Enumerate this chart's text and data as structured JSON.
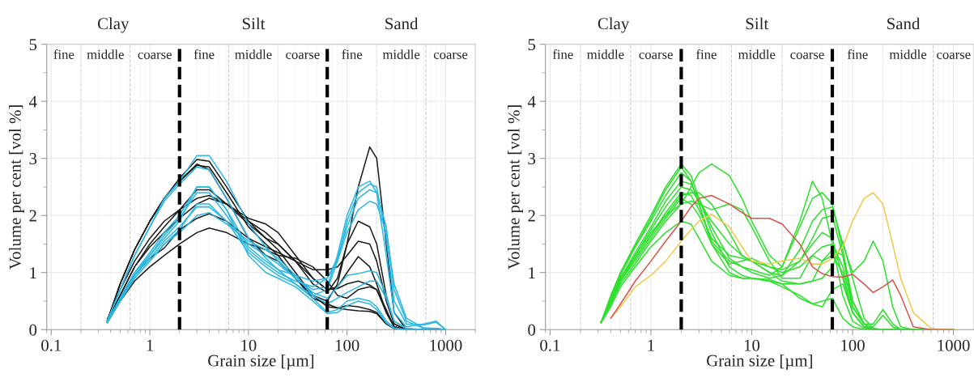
{
  "chart_data": [
    {
      "type": "line",
      "xlabel": "Grain size [µm]",
      "ylabel": "Volume per cent [vol %]",
      "log": "x",
      "grid": true,
      "legend": false,
      "marker": "none",
      "line_style": "solid",
      "xlim": [
        0.09,
        2000
      ],
      "xticks": [
        0.1,
        1,
        10,
        100,
        1000
      ],
      "ylim": [
        0,
        5
      ],
      "yticks": [
        0,
        1,
        2,
        3,
        4,
        5
      ],
      "x": [
        0.37,
        0.5,
        0.7,
        1,
        1.4,
        2,
        3,
        4,
        6,
        10,
        15,
        20,
        30,
        45,
        63,
        80,
        100,
        130,
        170,
        200,
        250,
        300,
        400,
        600,
        800,
        1000
      ],
      "series": [
        {
          "color": "#1a1a1a",
          "values": [
            0.15,
            0.8,
            1.4,
            1.9,
            2.3,
            2.65,
            2.98,
            2.95,
            2.5,
            1.9,
            1.6,
            1.4,
            1.0,
            0.6,
            0.4,
            0.38,
            0.42,
            0.4,
            0.35,
            0.3,
            0.1,
            0.02,
            0,
            0,
            0,
            0
          ]
        },
        {
          "color": "#1a1a1a",
          "values": [
            0.15,
            0.8,
            1.4,
            1.9,
            2.3,
            2.6,
            2.88,
            2.85,
            2.4,
            1.8,
            1.5,
            1.3,
            0.9,
            0.6,
            0.5,
            0.8,
            1.5,
            2.5,
            3.2,
            3.0,
            1.5,
            0.3,
            0,
            0,
            0,
            0
          ]
        },
        {
          "color": "#1a1a1a",
          "values": [
            0.15,
            0.6,
            1.1,
            1.5,
            1.8,
            2.1,
            2.45,
            2.45,
            2.2,
            1.9,
            1.7,
            1.5,
            1.2,
            0.8,
            0.65,
            0.9,
            1.5,
            1.9,
            1.8,
            1.5,
            0.6,
            0.1,
            0,
            0,
            0,
            0
          ]
        },
        {
          "color": "#1a1a1a",
          "values": [
            0.18,
            0.7,
            1.2,
            1.6,
            1.9,
            2.1,
            2.3,
            2.35,
            2.2,
            1.85,
            1.6,
            1.5,
            1.2,
            1.05,
            1.05,
            1.1,
            1.3,
            1.55,
            1.5,
            1.2,
            0.5,
            0.1,
            0,
            0,
            0,
            0
          ]
        },
        {
          "color": "#1a1a1a",
          "values": [
            0.15,
            0.6,
            1.1,
            1.45,
            1.7,
            1.95,
            2.2,
            2.3,
            2.2,
            1.95,
            1.85,
            1.7,
            1.3,
            0.9,
            0.7,
            0.75,
            1.0,
            1.28,
            1.1,
            0.8,
            0.3,
            0.05,
            0,
            0,
            0,
            0
          ]
        },
        {
          "color": "#1a1a1a",
          "values": [
            0.15,
            0.55,
            0.95,
            1.25,
            1.43,
            1.75,
            1.95,
            2.03,
            1.9,
            1.6,
            1.45,
            1.35,
            1.2,
            0.9,
            0.7,
            0.72,
            0.8,
            0.85,
            0.78,
            0.7,
            0.3,
            0.05,
            0,
            0,
            0,
            0
          ]
        },
        {
          "color": "#1a1a1a",
          "values": [
            0.12,
            0.5,
            0.85,
            1.1,
            1.3,
            1.5,
            1.7,
            1.78,
            1.7,
            1.5,
            1.4,
            1.3,
            1.25,
            1.1,
            0.85,
            0.6,
            0.55,
            0.7,
            0.75,
            0.7,
            0.35,
            0.05,
            0,
            0,
            0,
            0
          ]
        },
        {
          "color": "#1a1a1a",
          "values": [
            0.15,
            0.8,
            1.4,
            1.9,
            2.3,
            2.6,
            2.9,
            2.8,
            2.3,
            1.6,
            1.3,
            1.2,
            0.9,
            0.55,
            0.45,
            0.38,
            0.35,
            0.33,
            0.32,
            0.28,
            0.1,
            0.02,
            0,
            0,
            0,
            0
          ]
        },
        {
          "color": "#2bb8e2",
          "values": [
            0.15,
            0.7,
            1.3,
            1.8,
            2.3,
            2.6,
            3.05,
            3.05,
            2.6,
            1.85,
            1.45,
            1.2,
            0.9,
            0.7,
            0.75,
            1.3,
            2.0,
            2.5,
            2.6,
            2.4,
            1.3,
            0.3,
            0.05,
            0.1,
            0.15,
            0
          ]
        },
        {
          "color": "#2bb8e2",
          "values": [
            0.15,
            0.7,
            1.3,
            1.8,
            2.25,
            2.55,
            2.85,
            2.8,
            2.3,
            1.6,
            1.25,
            1.05,
            0.8,
            0.6,
            0.7,
            1.2,
            1.9,
            2.4,
            2.55,
            2.5,
            1.6,
            0.5,
            0.1,
            0.08,
            0.13,
            0
          ]
        },
        {
          "color": "#2bb8e2",
          "values": [
            0.13,
            0.55,
            1.0,
            1.35,
            1.7,
            2.0,
            2.5,
            2.5,
            2.1,
            1.45,
            1.2,
            1.05,
            0.95,
            0.85,
            0.9,
            1.25,
            1.8,
            2.3,
            2.45,
            2.4,
            1.8,
            0.7,
            0.15,
            0.02,
            0.02,
            0
          ]
        },
        {
          "color": "#2bb8e2",
          "values": [
            0.13,
            0.5,
            0.95,
            1.3,
            1.65,
            1.95,
            2.4,
            2.4,
            2.0,
            1.4,
            1.15,
            1.0,
            0.85,
            0.75,
            0.9,
            1.2,
            1.7,
            2.1,
            2.25,
            2.2,
            1.7,
            0.8,
            0.2,
            0.03,
            0.02,
            0
          ]
        },
        {
          "color": "#2bb8e2",
          "values": [
            0.13,
            0.5,
            0.95,
            1.25,
            1.55,
            1.8,
            2.15,
            2.15,
            1.9,
            1.5,
            1.3,
            1.15,
            0.9,
            0.65,
            0.55,
            0.75,
            0.95,
            0.98,
            1.03,
            1.0,
            0.6,
            0.15,
            0.02,
            0,
            0,
            0
          ]
        },
        {
          "color": "#2bb8e2",
          "values": [
            0.13,
            0.5,
            0.9,
            1.2,
            1.5,
            1.7,
            2.0,
            2.05,
            1.85,
            1.55,
            1.4,
            1.25,
            0.95,
            0.6,
            0.45,
            0.55,
            0.65,
            0.75,
            0.85,
            0.85,
            0.55,
            0.15,
            0.02,
            0,
            0,
            0
          ]
        },
        {
          "color": "#2bb8e2",
          "values": [
            0.13,
            0.5,
            0.9,
            1.2,
            1.5,
            1.75,
            2.2,
            2.2,
            1.9,
            1.35,
            1.1,
            0.95,
            0.8,
            0.55,
            0.3,
            0.35,
            0.5,
            0.55,
            0.5,
            0.4,
            0.15,
            0.03,
            0,
            0,
            0,
            0
          ]
        },
        {
          "color": "#2bb8e2",
          "values": [
            0.13,
            0.55,
            1.0,
            1.3,
            1.6,
            1.9,
            2.5,
            2.5,
            2.1,
            1.3,
            1.0,
            0.9,
            0.75,
            0.5,
            0.28,
            0.3,
            0.42,
            0.5,
            0.45,
            0.35,
            0.12,
            0.02,
            0,
            0,
            0,
            0
          ]
        }
      ],
      "ref_lines": [
        {
          "axis": "x",
          "value": 0.2,
          "color": "#cccccc",
          "line_style": "dashed"
        },
        {
          "axis": "x",
          "value": 0.63,
          "color": "#cccccc",
          "line_style": "dashed"
        },
        {
          "axis": "x",
          "value": 6.3,
          "color": "#cccccc",
          "line_style": "dashed"
        },
        {
          "axis": "x",
          "value": 20,
          "color": "#cccccc",
          "line_style": "dashed"
        },
        {
          "axis": "x",
          "value": 200,
          "color": "#cccccc",
          "line_style": "dashed"
        },
        {
          "axis": "x",
          "value": 630,
          "color": "#cccccc",
          "line_style": "dashed"
        },
        {
          "axis": "x",
          "value": 2,
          "color": "#000000",
          "line_style": "dashed"
        },
        {
          "axis": "x",
          "value": 63,
          "color": "#000000",
          "line_style": "dashed"
        }
      ],
      "annotations": [
        "Clay",
        "Silt",
        "Sand",
        "fine",
        "middle",
        "coarse",
        "fine",
        "middle",
        "coarse",
        "fine",
        "middle",
        "coarse"
      ]
    },
    {
      "type": "line",
      "xlabel": "Grain size [µm]",
      "ylabel": "Volume per cent [vol %]",
      "log": "x",
      "grid": true,
      "legend": false,
      "marker": "none",
      "line_style": "solid",
      "xlim": [
        0.09,
        1600
      ],
      "xticks": [
        0.1,
        1,
        10,
        100,
        1000
      ],
      "ylim": [
        0,
        5
      ],
      "yticks": [
        0,
        1,
        2,
        3,
        4,
        5
      ],
      "x": [
        0.32,
        0.4,
        0.5,
        0.7,
        1,
        1.4,
        2,
        2.5,
        3,
        4,
        6,
        8,
        10,
        15,
        20,
        30,
        40,
        50,
        63,
        80,
        100,
        130,
        160,
        200,
        250,
        300,
        400,
        600,
        1000
      ],
      "series": [
        {
          "color": "#2ee02e",
          "values": [
            0.12,
            0.6,
            1.0,
            1.5,
            2.0,
            2.5,
            2.9,
            2.7,
            2.3,
            1.7,
            1.1,
            0.95,
            0.9,
            0.88,
            0.8,
            0.55,
            0.45,
            0.5,
            0.55,
            0.2,
            0.05,
            0,
            0,
            0,
            0,
            0,
            0,
            0,
            0
          ]
        },
        {
          "color": "#2ee02e",
          "values": [
            0.12,
            0.5,
            0.9,
            1.3,
            1.7,
            2.0,
            2.2,
            2.5,
            2.75,
            2.9,
            2.7,
            2.3,
            1.9,
            1.3,
            1.1,
            1.9,
            2.6,
            2.3,
            1.5,
            0.6,
            0.15,
            0.02,
            0,
            0,
            0,
            0,
            0,
            0,
            0
          ]
        },
        {
          "color": "#2ee02e",
          "values": [
            0.12,
            0.55,
            0.95,
            1.45,
            1.95,
            2.45,
            2.85,
            2.6,
            2.2,
            1.55,
            1.2,
            1.1,
            1.05,
            0.95,
            1.1,
            1.8,
            2.3,
            2.4,
            2.2,
            1.4,
            0.5,
            0.1,
            0.02,
            0,
            0,
            0,
            0,
            0,
            0
          ]
        },
        {
          "color": "#2ee02e",
          "values": [
            0.13,
            0.5,
            0.9,
            1.35,
            1.8,
            2.25,
            2.6,
            2.55,
            2.3,
            1.8,
            1.25,
            1.1,
            1.0,
            0.9,
            0.95,
            1.4,
            1.9,
            2.1,
            2.15,
            1.5,
            1.0,
            1.2,
            1.55,
            1.2,
            0.4,
            0.05,
            0,
            0,
            0
          ]
        },
        {
          "color": "#2ee02e",
          "values": [
            0.13,
            0.5,
            0.9,
            1.3,
            1.75,
            2.15,
            2.5,
            2.45,
            2.25,
            1.9,
            1.5,
            1.3,
            1.2,
            1.0,
            0.95,
            1.2,
            1.6,
            1.95,
            2.0,
            1.3,
            0.4,
            0.1,
            0.1,
            0.35,
            0.1,
            0,
            0,
            0,
            0
          ]
        },
        {
          "color": "#2ee02e",
          "values": [
            0.13,
            0.45,
            0.85,
            1.25,
            1.65,
            2.05,
            2.4,
            2.35,
            2.1,
            1.6,
            1.3,
            1.25,
            1.2,
            1.1,
            1.05,
            1.2,
            1.5,
            1.7,
            1.6,
            0.9,
            0.3,
            0.05,
            0.05,
            0.25,
            0.05,
            0,
            0,
            0,
            0
          ]
        },
        {
          "color": "#2ee02e",
          "values": [
            0.13,
            0.45,
            0.85,
            1.2,
            1.6,
            1.95,
            2.3,
            2.2,
            2.0,
            1.5,
            1.15,
            1.2,
            1.25,
            1.1,
            1.0,
            1.1,
            1.3,
            1.45,
            1.5,
            1.1,
            0.4,
            0.1,
            0,
            0,
            0,
            0,
            0,
            0,
            0
          ]
        },
        {
          "color": "#2ee02e",
          "values": [
            0.13,
            0.45,
            0.8,
            1.15,
            1.55,
            1.9,
            2.2,
            2.25,
            2.2,
            2.1,
            2.2,
            2.1,
            1.8,
            1.2,
            0.9,
            0.9,
            1.3,
            1.2,
            1.3,
            1.0,
            0.3,
            0.05,
            0,
            0,
            0,
            0,
            0,
            0,
            0
          ]
        },
        {
          "color": "#2ee02e",
          "values": [
            0.12,
            0.4,
            0.75,
            1.1,
            1.45,
            1.7,
            1.9,
            1.85,
            1.6,
            1.2,
            0.95,
            0.9,
            0.9,
            0.85,
            0.8,
            0.8,
            0.85,
            0.9,
            1.1,
            1.55,
            0.9,
            0.2,
            0.02,
            0,
            0,
            0,
            0,
            0,
            0
          ]
        },
        {
          "color": "#2ee02e",
          "values": [
            0.13,
            0.55,
            1.0,
            1.45,
            1.9,
            2.35,
            2.75,
            2.6,
            2.2,
            1.5,
            1.0,
            0.9,
            0.9,
            0.85,
            0.75,
            0.6,
            0.45,
            0.4,
            0.7,
            0.8,
            0.3,
            0.05,
            0,
            0,
            0,
            0,
            0,
            0,
            0
          ]
        },
        {
          "color": "#2ee02e",
          "values": [
            0.13,
            0.5,
            0.9,
            1.25,
            1.65,
            2.0,
            2.35,
            2.4,
            2.4,
            2.2,
            1.7,
            1.3,
            1.2,
            1.0,
            0.85,
            0.8,
            0.85,
            1.2,
            1.4,
            1.3,
            0.5,
            0.1,
            0,
            0,
            0,
            0,
            0,
            0,
            0
          ]
        },
        {
          "color": "#f2c94c",
          "values": [
            null,
            0.2,
            0.4,
            0.75,
            0.95,
            1.2,
            1.55,
            1.75,
            1.9,
            2.02,
            1.8,
            1.45,
            1.2,
            1.15,
            1.2,
            1.25,
            1.15,
            1.15,
            1.25,
            1.45,
            1.9,
            2.3,
            2.4,
            2.2,
            1.5,
            0.9,
            0.3,
            0.02,
            0
          ]
        },
        {
          "color": "#d9534f",
          "values": [
            null,
            0.2,
            0.45,
            0.85,
            1.2,
            1.55,
            1.9,
            2.15,
            2.3,
            2.35,
            2.2,
            2.05,
            1.95,
            1.95,
            1.85,
            1.5,
            1.1,
            0.98,
            0.93,
            0.92,
            0.97,
            0.8,
            0.65,
            0.75,
            0.87,
            0.6,
            0.05,
            0,
            0
          ]
        }
      ],
      "ref_lines": [
        {
          "axis": "x",
          "value": 0.2,
          "color": "#cccccc",
          "line_style": "dashed"
        },
        {
          "axis": "x",
          "value": 0.63,
          "color": "#cccccc",
          "line_style": "dashed"
        },
        {
          "axis": "x",
          "value": 6.3,
          "color": "#cccccc",
          "line_style": "dashed"
        },
        {
          "axis": "x",
          "value": 20,
          "color": "#cccccc",
          "line_style": "dashed"
        },
        {
          "axis": "x",
          "value": 200,
          "color": "#cccccc",
          "line_style": "dashed"
        },
        {
          "axis": "x",
          "value": 630,
          "color": "#cccccc",
          "line_style": "dashed"
        },
        {
          "axis": "x",
          "value": 2,
          "color": "#000000",
          "line_style": "dashed"
        },
        {
          "axis": "x",
          "value": 63,
          "color": "#000000",
          "line_style": "dashed"
        }
      ],
      "annotations": [
        "Clay",
        "Silt",
        "Sand",
        "fine",
        "middle",
        "coarse",
        "fine",
        "middle",
        "coarse",
        "fine",
        "middle",
        "coarse"
      ]
    }
  ]
}
